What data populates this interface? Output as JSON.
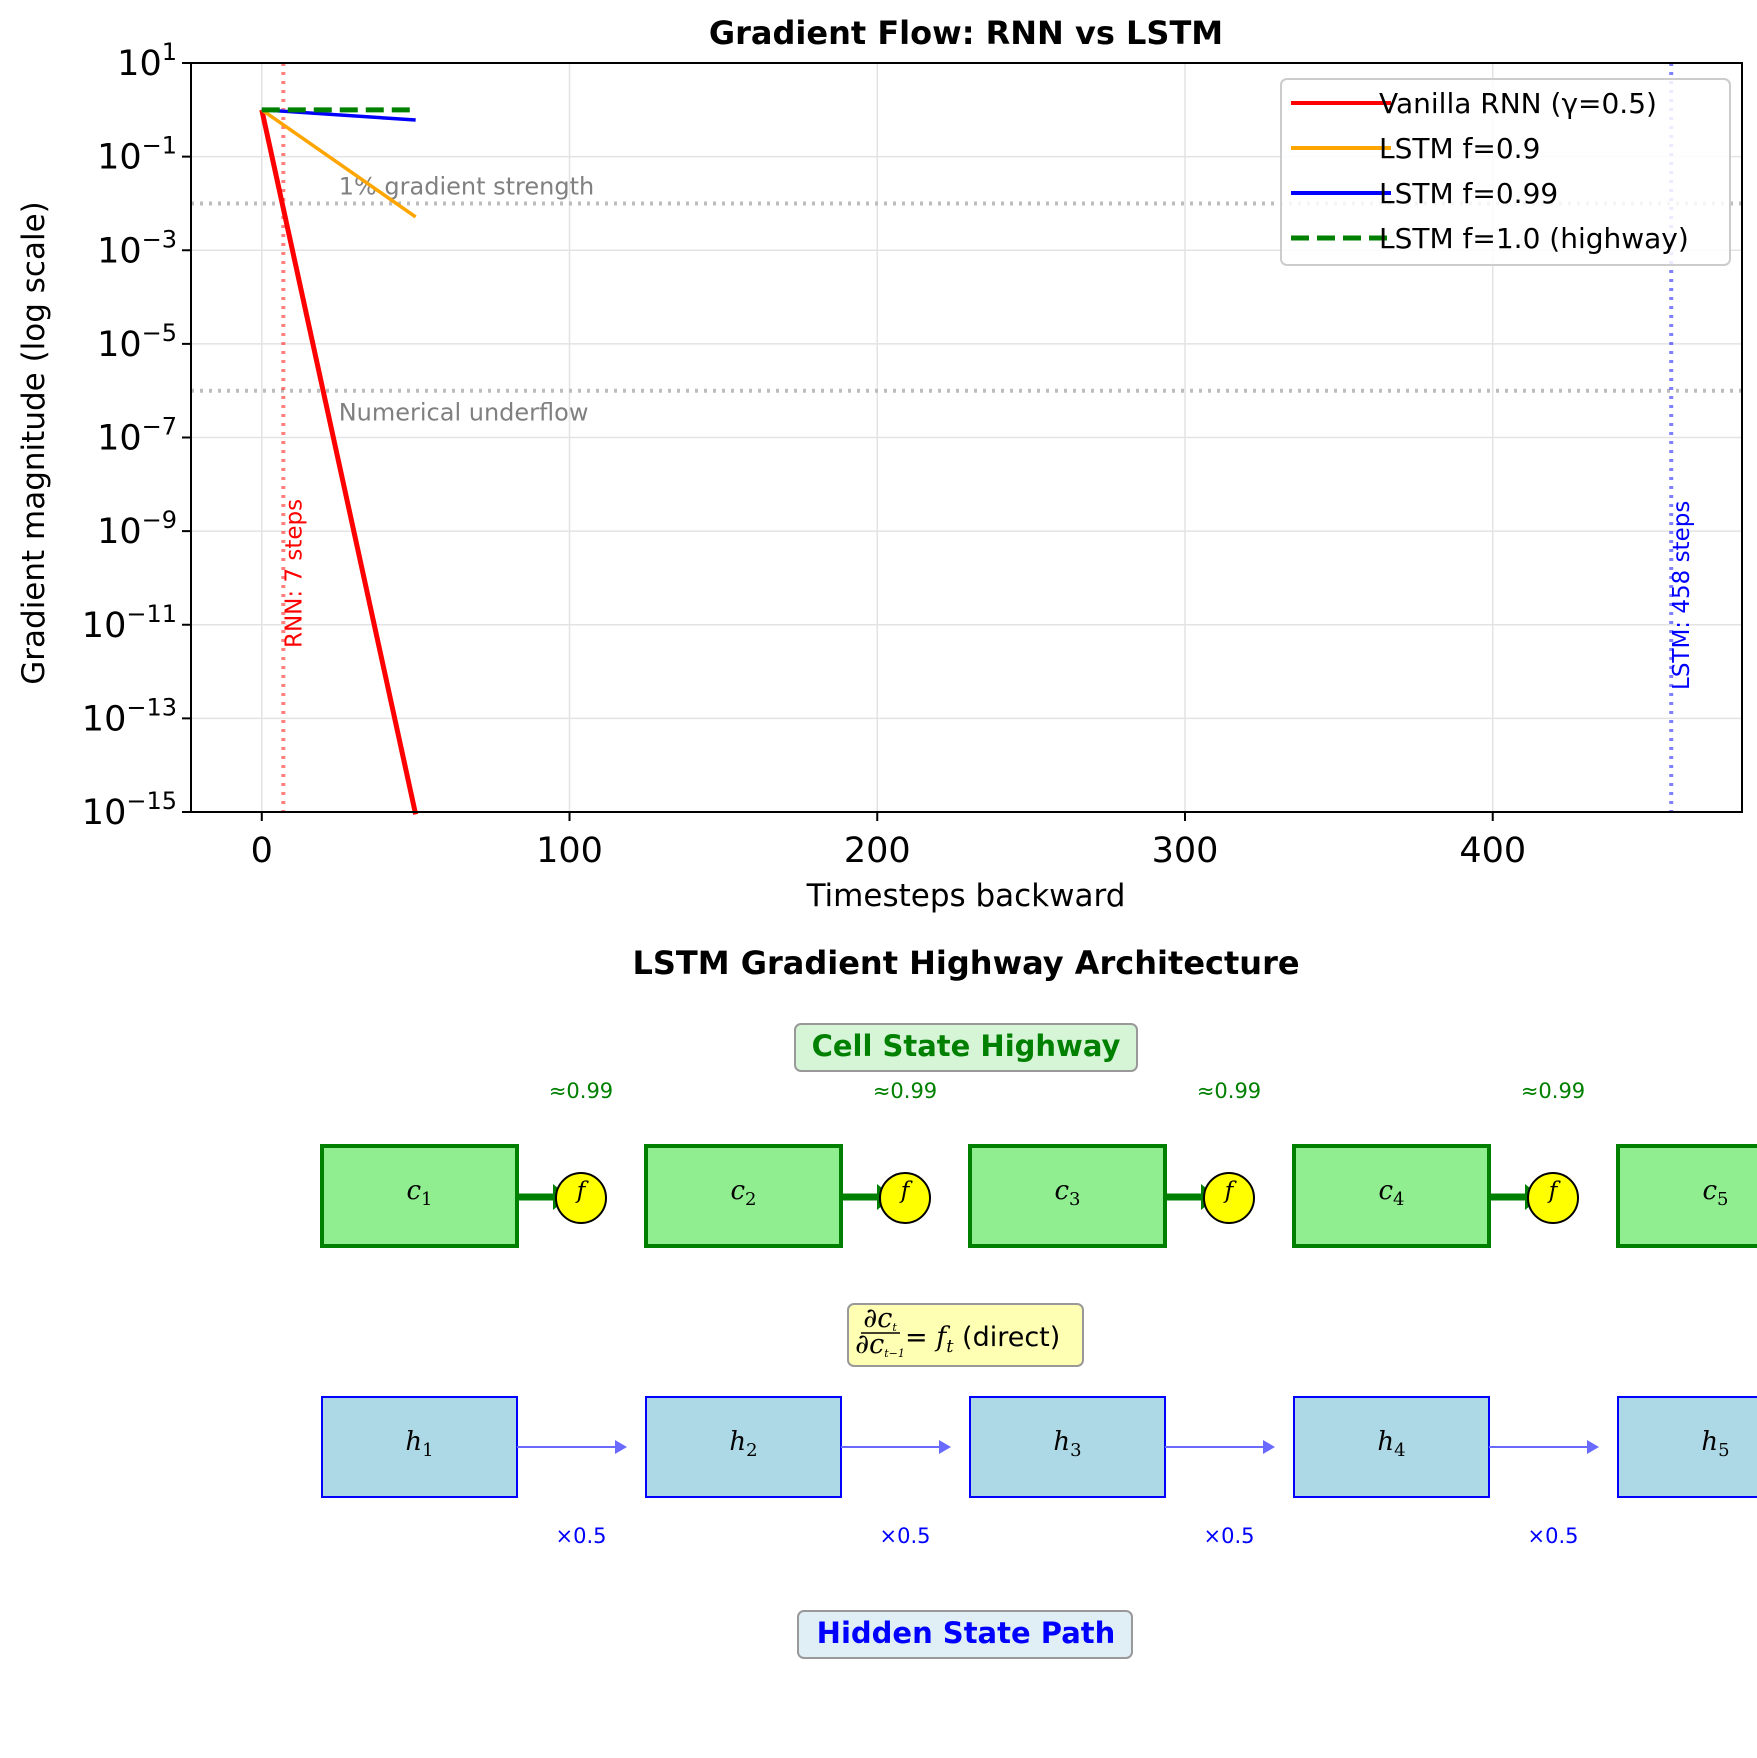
{
  "chart_data": [
    {
      "type": "line",
      "title": "Gradient Flow: RNN vs LSTM",
      "xlabel": "Timesteps backward",
      "ylabel": "Gradient magnitude (log scale)",
      "yscale": "log",
      "xlim": [
        -23,
        481
      ],
      "ylim": [
        1e-15,
        10
      ],
      "xticks": [
        0,
        100,
        200,
        300,
        400
      ],
      "yticks": [
        {
          "exp": 1,
          "label": "10",
          "sup": "1"
        },
        {
          "exp": -1,
          "label": "10",
          "sup": "−1"
        },
        {
          "exp": -3,
          "label": "10",
          "sup": "−3"
        },
        {
          "exp": -5,
          "label": "10",
          "sup": "−5"
        },
        {
          "exp": -7,
          "label": "10",
          "sup": "−7"
        },
        {
          "exp": -9,
          "label": "10",
          "sup": "−9"
        },
        {
          "exp": -11,
          "label": "10",
          "sup": "−11"
        },
        {
          "exp": -13,
          "label": "10",
          "sup": "−13"
        },
        {
          "exp": -15,
          "label": "10",
          "sup": "−15"
        }
      ],
      "grid": true,
      "legend_position": "top-right",
      "series": [
        {
          "name": "Vanilla RNN (γ=0.5)",
          "color": "#ff0000",
          "style": "solid",
          "width": 5,
          "x": [
            0,
            50
          ],
          "y": [
            1,
            8.9e-16
          ]
        },
        {
          "name": "LSTM f=0.9",
          "color": "#ffa500",
          "style": "solid",
          "width": 3.5,
          "x": [
            0,
            50
          ],
          "y": [
            1,
            0.00515
          ]
        },
        {
          "name": "LSTM f=0.99",
          "color": "#0000ff",
          "style": "solid",
          "width": 3.5,
          "x": [
            0,
            50
          ],
          "y": [
            1,
            0.605
          ]
        },
        {
          "name": "LSTM f=1.0 (highway)",
          "color": "#008000",
          "style": "dashed",
          "width": 5,
          "x": [
            0,
            50
          ],
          "y": [
            1,
            1
          ]
        }
      ],
      "hlines": [
        {
          "y": 0.01,
          "label": "1% gradient strength",
          "label_x": 25
        },
        {
          "y": 1e-06,
          "label": "Numerical underflow",
          "label_x": 25
        }
      ],
      "vlines": [
        {
          "x": 7,
          "label": "RNN: 7 steps",
          "color": "#ff0000"
        },
        {
          "x": 458,
          "label": "LSTM: 458 steps",
          "color": "#0000ff"
        }
      ]
    }
  ],
  "diagram": {
    "title": "LSTM Gradient Highway Architecture",
    "cell_state_label": "Cell State Highway",
    "hidden_state_label": "Hidden State Path",
    "cells": [
      {
        "base": "c",
        "sub": "1"
      },
      {
        "base": "c",
        "sub": "2"
      },
      {
        "base": "c",
        "sub": "3"
      },
      {
        "base": "c",
        "sub": "4"
      },
      {
        "base": "c",
        "sub": "5"
      }
    ],
    "hiddens": [
      {
        "base": "h",
        "sub": "1"
      },
      {
        "base": "h",
        "sub": "2"
      },
      {
        "base": "h",
        "sub": "3"
      },
      {
        "base": "h",
        "sub": "4"
      },
      {
        "base": "h",
        "sub": "5"
      }
    ],
    "gate_label": "f",
    "cell_factor": "≈0.99",
    "hidden_factor": "×0.5",
    "equation": {
      "num_base": "∂c",
      "num_sub": "t",
      "den_base": "∂c",
      "den_sub": "t−1",
      "eq": "=",
      "rhs_base": "f",
      "rhs_sub": "t",
      "suffix": "(direct)"
    },
    "colors": {
      "cell_fill": "#90ee90",
      "cell_stroke": "#008000",
      "hidden_fill": "#add8e6",
      "hidden_stroke": "#0000ff",
      "gate_fill": "#ffff00"
    }
  }
}
